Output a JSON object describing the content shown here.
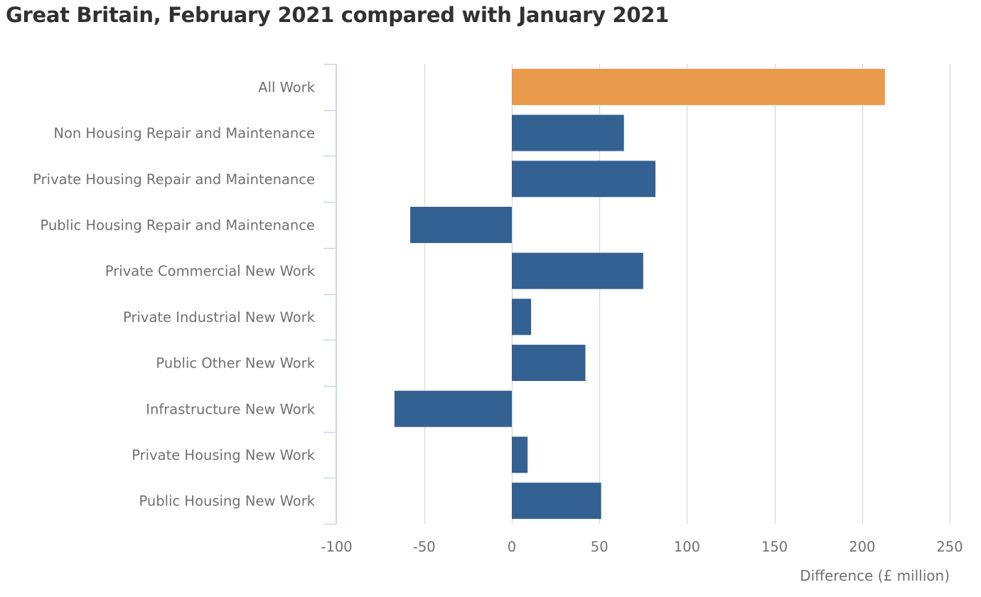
{
  "chart_data": {
    "type": "bar",
    "orientation": "horizontal",
    "title": "Great Britain, February 2021 compared with January 2021",
    "xlabel": "Difference (£ million)",
    "ylabel": "",
    "xlim": [
      -100,
      250
    ],
    "xticks": [
      -100,
      -50,
      0,
      50,
      100,
      150,
      200,
      250
    ],
    "grid": true,
    "categories": [
      "All Work",
      "Non Housing Repair and Maintenance",
      "Private Housing Repair and Maintenance",
      "Public Housing Repair and Maintenance",
      "Private Commercial New Work",
      "Private Industrial New Work",
      "Public Other New Work",
      "Infrastructure New Work",
      "Private Housing New Work",
      "Public Housing New Work"
    ],
    "values": [
      213,
      64,
      82,
      -58,
      75,
      11,
      42,
      -67,
      9,
      51
    ],
    "colors": [
      "#e8994a",
      "#336192",
      "#336192",
      "#336192",
      "#336192",
      "#336192",
      "#336192",
      "#336192",
      "#336192",
      "#336192"
    ],
    "gridColor": "#dcdcdc",
    "axisColor": "#ccd6eb"
  }
}
